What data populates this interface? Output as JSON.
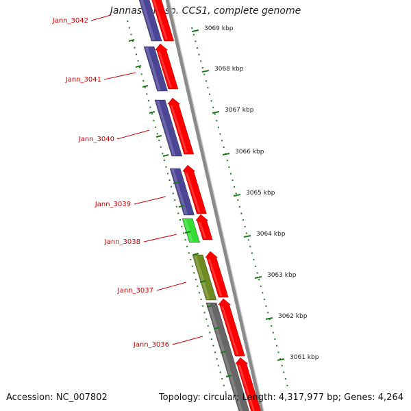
{
  "title": "Jannaschia sp. CCS1, complete genome",
  "accession": "Accession: NC_007802",
  "topology": "Topology: circular; Length: 4,317,977 bp; Genes: 4,264",
  "colors": {
    "forward_arrow": "#ff0000",
    "gene_blue": "#4b4596",
    "gene_green": "#33dd33",
    "gene_olive": "#6f8b22",
    "gene_gray": "#666666",
    "backbone": "#8a8a8a",
    "tick_green": "#1a7a1a",
    "label_red": "#cc0000"
  },
  "gene_labels": [
    "Jann_3042",
    "Jann_3041",
    "Jann_3040",
    "Jann_3039",
    "Jann_3038",
    "Jann_3037",
    "Jann_3036"
  ],
  "gene_colors": [
    "blue",
    "blue",
    "blue",
    "blue",
    "green",
    "olive",
    "gray"
  ],
  "scale_ticks": [
    "3069 kbp",
    "3068 kbp",
    "3067 kbp",
    "3066 kbp",
    "3065 kbp",
    "3064 kbp",
    "3063 kbp",
    "3062 kbp",
    "3061 kbp"
  ]
}
